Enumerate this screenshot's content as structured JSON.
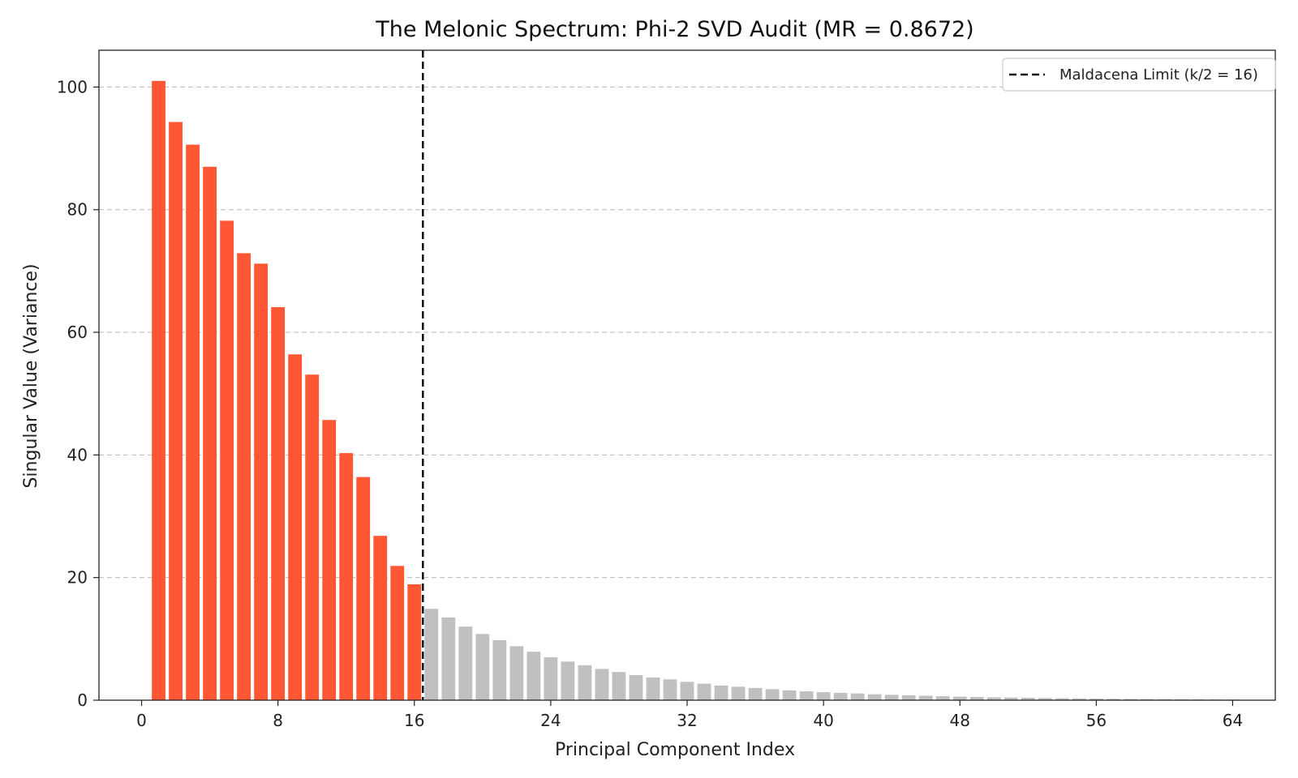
{
  "chart_data": {
    "type": "bar",
    "title": "The Melonic Spectrum: Phi-2 SVD Audit (MR = 0.8672)",
    "xlabel": "Principal Component Index",
    "ylabel": "Singular Value (Variance)",
    "xlim": [
      -2.5,
      66.5
    ],
    "ylim": [
      0,
      106
    ],
    "xticks": [
      0,
      8,
      16,
      24,
      32,
      40,
      48,
      56,
      64
    ],
    "yticks": [
      0,
      20,
      40,
      60,
      80,
      100
    ],
    "grid": "y-dashed",
    "legend_position": "top-right",
    "x": [
      1,
      2,
      3,
      4,
      5,
      6,
      7,
      8,
      9,
      10,
      11,
      12,
      13,
      14,
      15,
      16,
      17,
      18,
      19,
      20,
      21,
      22,
      23,
      24,
      25,
      26,
      27,
      28,
      29,
      30,
      31,
      32,
      33,
      34,
      35,
      36,
      37,
      38,
      39,
      40,
      41,
      42,
      43,
      44,
      45,
      46,
      47,
      48,
      49,
      50,
      51,
      52,
      53,
      54,
      55,
      56,
      57,
      58,
      59,
      60,
      61,
      62,
      63,
      64
    ],
    "values": [
      101.0,
      94.3,
      90.6,
      87.0,
      78.2,
      72.9,
      71.2,
      64.1,
      56.4,
      53.1,
      45.7,
      40.3,
      36.4,
      26.8,
      21.9,
      18.9,
      14.9,
      13.5,
      12.0,
      10.8,
      9.8,
      8.8,
      7.9,
      7.0,
      6.3,
      5.7,
      5.1,
      4.6,
      4.1,
      3.7,
      3.4,
      3.0,
      2.7,
      2.4,
      2.2,
      2.0,
      1.8,
      1.6,
      1.45,
      1.3,
      1.2,
      1.1,
      0.97,
      0.88,
      0.8,
      0.72,
      0.65,
      0.58,
      0.52,
      0.47,
      0.43,
      0.39,
      0.35,
      0.32,
      0.29,
      0.26,
      0.23,
      0.21,
      0.19,
      0.17,
      0.15,
      0.13,
      0.12,
      0.11
    ],
    "highlight_count": 16,
    "colors": {
      "highlight": "#ff5733",
      "rest": "#c0c0c0",
      "limit_line": "#111111",
      "grid": "#bbbbbb"
    },
    "limit_line": {
      "x": 16.5,
      "label": "Maldacena Limit (k/2 = 16)"
    }
  }
}
